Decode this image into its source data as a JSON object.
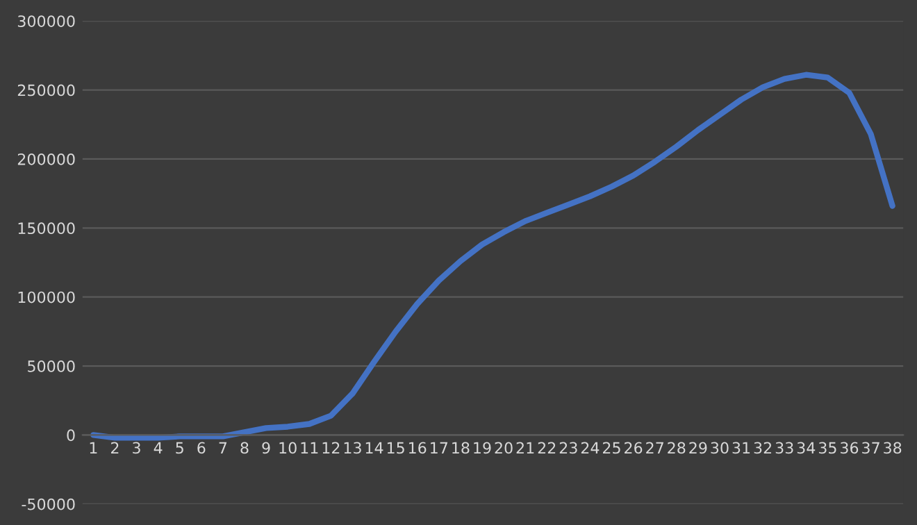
{
  "chart_data": {
    "type": "line",
    "categories": [
      "1",
      "2",
      "3",
      "4",
      "5",
      "6",
      "7",
      "8",
      "9",
      "10",
      "11",
      "12",
      "13",
      "14",
      "15",
      "16",
      "17",
      "18",
      "19",
      "20",
      "21",
      "22",
      "23",
      "24",
      "25",
      "26",
      "27",
      "28",
      "29",
      "30",
      "31",
      "32",
      "33",
      "34",
      "35",
      "36",
      "37",
      "38"
    ],
    "series": [
      {
        "color": "#4472c4",
        "values": [
          0,
          -2000,
          -2000,
          -2000,
          -1000,
          -1000,
          -1000,
          2000,
          5000,
          6000,
          8000,
          14000,
          30000,
          53000,
          75000,
          95000,
          112000,
          126000,
          138000,
          147000,
          155000,
          161000,
          167000,
          173000,
          180000,
          188000,
          198000,
          209000,
          221000,
          232000,
          243000,
          252000,
          258000,
          261000,
          259000,
          248000,
          218000,
          166000
        ]
      }
    ],
    "ylim": [
      -50000,
      300000
    ],
    "yticks": [
      -50000,
      0,
      50000,
      100000,
      150000,
      200000,
      250000,
      300000
    ],
    "grid": "y",
    "marker": "none",
    "line_style": "solid"
  }
}
